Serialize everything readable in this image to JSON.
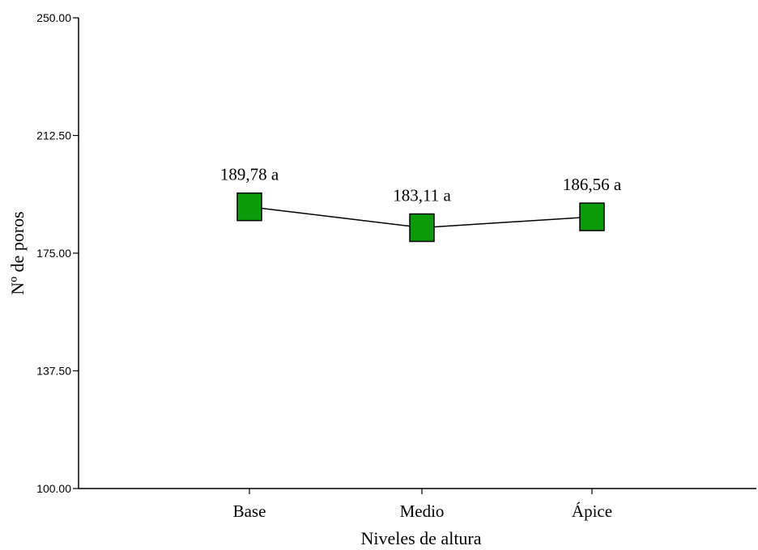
{
  "chart_data": {
    "type": "line",
    "categories": [
      "Base",
      "Medio",
      "Ápice"
    ],
    "values": [
      189.78,
      183.11,
      186.56
    ],
    "data_labels": [
      "189,78 a",
      "183,11 a",
      "186,56 a"
    ],
    "title": "",
    "xlabel": "Niveles de altura",
    "ylabel": "Nº de poros",
    "ylim": [
      100,
      250
    ],
    "yticks": [
      "100.00",
      "137.50",
      "175.00",
      "212.50",
      "250.00"
    ],
    "grid": false,
    "legend": "none",
    "marker": "square",
    "marker_color": "#0a9a0a",
    "line_color": "#000000"
  }
}
